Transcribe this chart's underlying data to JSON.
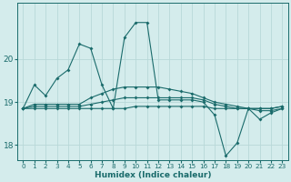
{
  "xlabel": "Humidex (Indice chaleur)",
  "bg_color": "#d4ecec",
  "grid_color": "#b8d8d8",
  "line_color": "#1a6b6b",
  "xlim": [
    -0.5,
    23.5
  ],
  "ylim": [
    17.65,
    21.3
  ],
  "yticks": [
    18,
    19,
    20
  ],
  "xticks": [
    0,
    1,
    2,
    3,
    4,
    5,
    6,
    7,
    8,
    9,
    10,
    11,
    12,
    13,
    14,
    15,
    16,
    17,
    18,
    19,
    20,
    21,
    22,
    23
  ],
  "series_raw": {
    "line1_x": [
      0,
      1,
      2,
      3,
      4,
      5,
      6,
      7,
      8,
      9,
      10,
      11,
      12,
      13,
      14,
      15,
      16,
      17,
      18,
      19,
      20,
      21,
      22,
      23
    ],
    "line1_y": [
      18.85,
      19.4,
      19.15,
      19.55,
      19.75,
      20.35,
      20.25,
      19.4,
      18.85,
      20.5,
      20.85,
      20.85,
      19.05,
      19.05,
      19.05,
      19.05,
      19.0,
      18.7,
      17.75,
      18.05,
      18.85,
      18.6,
      18.75,
      18.85
    ],
    "line2_x": [
      0,
      1,
      2,
      3,
      4,
      5,
      6,
      7,
      8,
      9,
      10,
      11,
      12,
      13,
      14,
      15,
      16,
      17,
      18,
      19,
      20,
      21,
      22,
      23
    ],
    "line2_y": [
      18.85,
      18.85,
      18.85,
      18.85,
      18.85,
      18.85,
      18.85,
      18.85,
      18.85,
      18.85,
      18.9,
      18.9,
      18.9,
      18.9,
      18.9,
      18.9,
      18.9,
      18.85,
      18.85,
      18.85,
      18.85,
      18.85,
      18.85,
      18.9
    ],
    "line3_x": [
      0,
      1,
      2,
      3,
      4,
      5,
      6,
      7,
      8,
      9,
      10,
      11,
      12,
      13,
      14,
      15,
      16,
      17,
      18,
      19,
      20,
      21,
      22,
      23
    ],
    "line3_y": [
      18.85,
      18.9,
      18.9,
      18.9,
      18.9,
      18.9,
      18.95,
      19.0,
      19.05,
      19.1,
      19.1,
      19.1,
      19.1,
      19.1,
      19.1,
      19.1,
      19.05,
      18.95,
      18.9,
      18.85,
      18.85,
      18.85,
      18.85,
      18.9
    ],
    "line4_x": [
      0,
      1,
      2,
      3,
      4,
      5,
      6,
      7,
      8,
      9,
      10,
      11,
      12,
      13,
      14,
      15,
      16,
      17,
      18,
      19,
      20,
      21,
      22,
      23
    ],
    "line4_y": [
      18.85,
      18.95,
      18.95,
      18.95,
      18.95,
      18.95,
      19.1,
      19.2,
      19.3,
      19.35,
      19.35,
      19.35,
      19.35,
      19.3,
      19.25,
      19.2,
      19.1,
      19.0,
      18.95,
      18.9,
      18.85,
      18.8,
      18.8,
      18.85
    ]
  }
}
